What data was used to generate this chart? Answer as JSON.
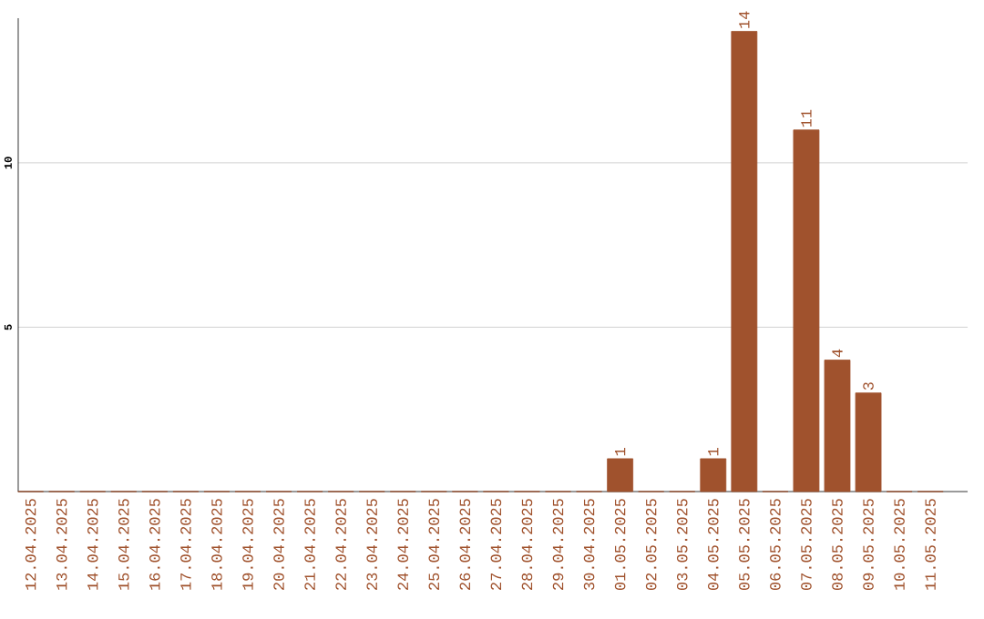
{
  "chart_data": {
    "type": "bar",
    "categories": [
      "12.04.2025",
      "13.04.2025",
      "14.04.2025",
      "15.04.2025",
      "16.04.2025",
      "17.04.2025",
      "18.04.2025",
      "19.04.2025",
      "20.04.2025",
      "21.04.2025",
      "22.04.2025",
      "23.04.2025",
      "24.04.2025",
      "25.04.2025",
      "26.04.2025",
      "27.04.2025",
      "28.04.2025",
      "29.04.2025",
      "30.04.2025",
      "01.05.2025",
      "02.05.2025",
      "03.05.2025",
      "04.05.2025",
      "05.05.2025",
      "06.05.2025",
      "07.05.2025",
      "08.05.2025",
      "09.05.2025",
      "10.05.2025",
      "11.05.2025"
    ],
    "values": [
      0,
      0,
      0,
      0,
      0,
      0,
      0,
      0,
      0,
      0,
      0,
      0,
      0,
      0,
      0,
      0,
      0,
      0,
      0,
      1,
      0,
      0,
      1,
      14,
      0,
      11,
      4,
      3,
      0,
      0
    ],
    "value_labels": [
      null,
      null,
      null,
      null,
      null,
      null,
      null,
      null,
      null,
      null,
      null,
      null,
      null,
      null,
      null,
      null,
      null,
      null,
      null,
      "1",
      null,
      null,
      "1",
      "14",
      null,
      "11",
      "4",
      "3",
      null,
      null
    ],
    "color": "#a0522d",
    "ylim": [
      0,
      14.4
    ],
    "yticks": [
      5,
      10
    ],
    "grid": "y"
  }
}
